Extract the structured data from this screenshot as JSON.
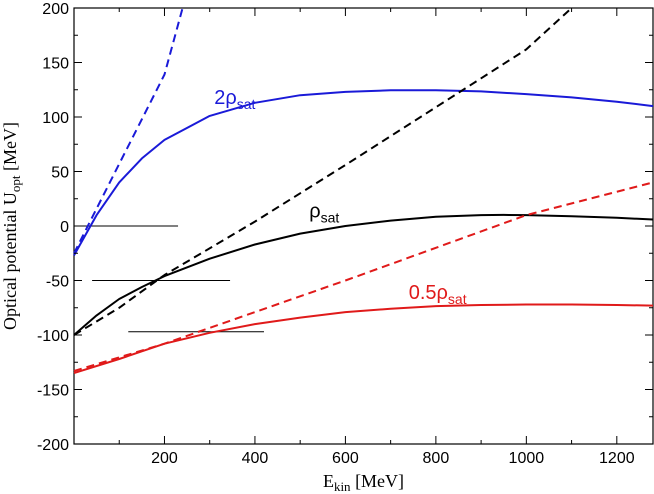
{
  "chart_data": {
    "type": "line",
    "xlabel": {
      "main": "E",
      "sub": "kin",
      "unit": " [MeV]"
    },
    "ylabel": {
      "main": "Optical potential U",
      "sub": "opt",
      "unit": " [MeV]"
    },
    "xlim": [
      0,
      1280
    ],
    "ylim": [
      -200,
      200
    ],
    "x_ticks": [
      200,
      400,
      600,
      800,
      1000,
      1200
    ],
    "y_ticks": [
      -200,
      -150,
      -100,
      -50,
      0,
      50,
      100,
      150,
      200
    ],
    "grid": false,
    "series": [
      {
        "id": "rho2",
        "label_main": "2ρ",
        "label_sub": "sat",
        "color": "#1a1ad8",
        "style": "solid",
        "x": [
          0,
          50,
          100,
          150,
          200,
          300,
          400,
          500,
          600,
          700,
          800,
          900,
          1000,
          1100,
          1200,
          1280
        ],
        "y": [
          -27,
          10,
          40,
          62,
          79,
          101,
          113,
          120,
          123,
          124.5,
          124.5,
          123.5,
          121,
          118,
          114,
          110
        ]
      },
      {
        "id": "rho2-dashed",
        "label_main": "",
        "label_sub": "",
        "color": "#1a1ad8",
        "style": "dashed",
        "x": [
          0,
          50,
          100,
          150,
          200,
          240
        ],
        "y": [
          -25,
          16,
          57,
          98,
          139,
          200
        ]
      },
      {
        "id": "rho",
        "label_main": "ρ",
        "label_sub": "sat",
        "color": "#000000",
        "style": "solid",
        "x": [
          0,
          50,
          100,
          150,
          200,
          300,
          400,
          500,
          600,
          700,
          800,
          900,
          950,
          1000,
          1100,
          1200,
          1280
        ],
        "y": [
          -100,
          -82,
          -67,
          -56,
          -46,
          -30,
          -17,
          -7,
          0,
          5,
          8.5,
          10,
          10.2,
          10,
          9,
          7.5,
          6
        ]
      },
      {
        "id": "rho-dashed",
        "label_main": "",
        "label_sub": "",
        "color": "#000000",
        "style": "dashed",
        "x": [
          0,
          100,
          200,
          400,
          600,
          800,
          1000,
          1100
        ],
        "y": [
          -100,
          -75,
          -45,
          4,
          56,
          109,
          162,
          200
        ]
      },
      {
        "id": "rho05",
        "label_main": "0.5ρ",
        "label_sub": "sat",
        "color": "#e01a1a",
        "style": "solid",
        "x": [
          0,
          100,
          200,
          300,
          400,
          500,
          600,
          700,
          800,
          900,
          1000,
          1100,
          1200,
          1280
        ],
        "y": [
          -135,
          -122,
          -108,
          -98,
          -90,
          -84,
          -79,
          -76,
          -73.5,
          -72.5,
          -72,
          -72,
          -72.5,
          -73
        ]
      },
      {
        "id": "rho05-dashed",
        "label_main": "",
        "label_sub": "",
        "color": "#e01a1a",
        "style": "dashed",
        "x": [
          0,
          200,
          400,
          600,
          800,
          1000,
          1280
        ],
        "y": [
          -133,
          -108,
          -79,
          -50,
          -20,
          10,
          40
        ]
      }
    ],
    "hlines": [
      {
        "y": 0,
        "xmin": -70,
        "xmax": 230
      },
      {
        "y": -50,
        "xmin": 40,
        "xmax": 345
      },
      {
        "y": -97,
        "xmin": 120,
        "xmax": 420
      }
    ],
    "labels": [
      {
        "series": "rho2",
        "x": 310,
        "y": 112
      },
      {
        "series": "rho",
        "x": 520,
        "y": 8
      },
      {
        "series": "rho05",
        "x": 740,
        "y": -67
      }
    ]
  }
}
